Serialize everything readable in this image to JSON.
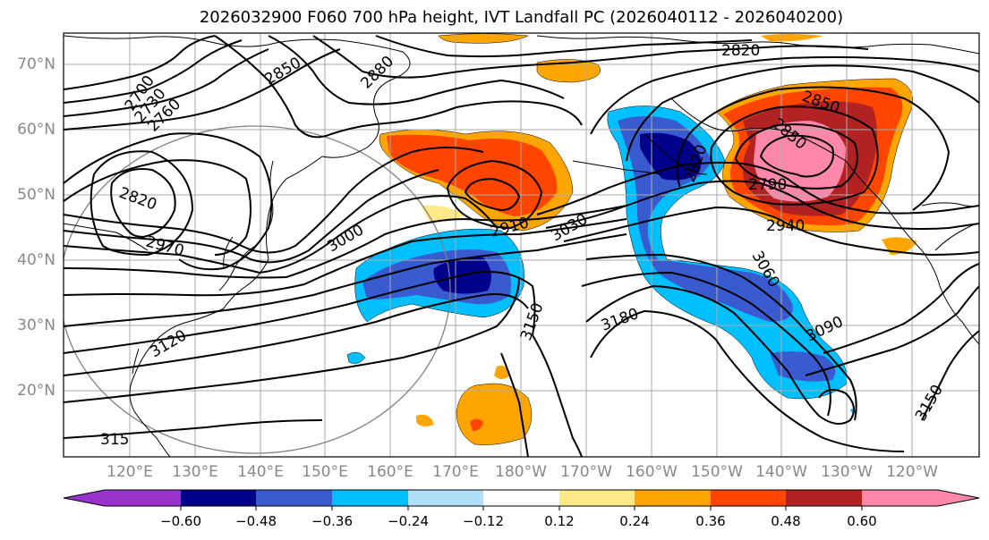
{
  "title": "2026032900 F060 700 hPa height, IVT Landfall PC (2026040112 - 2026040200)",
  "map": {
    "lat_labels": [
      "70°N",
      "60°N",
      "50°N",
      "40°N",
      "30°N",
      "20°N"
    ],
    "lon_labels": [
      "120°E",
      "130°E",
      "140°E",
      "150°E",
      "160°E",
      "170°E",
      "180°W",
      "170°W",
      "160°W",
      "150°W",
      "140°W",
      "130°W",
      "120°W"
    ],
    "contour_labels": [
      {
        "text": "2820",
        "rot": 0
      },
      {
        "text": "2850",
        "rot": -30
      },
      {
        "text": "2880",
        "rot": -45
      },
      {
        "text": "2700",
        "rot": -55
      },
      {
        "text": "2730",
        "rot": -50
      },
      {
        "text": "2760",
        "rot": -45
      },
      {
        "text": "2820",
        "rot": 20
      },
      {
        "text": "2850",
        "rot": 20
      },
      {
        "text": "2850",
        "rot": 40
      },
      {
        "text": "2910",
        "rot": -15
      },
      {
        "text": "3030",
        "rot": -30
      },
      {
        "text": "2970",
        "rot": 15
      },
      {
        "text": "3000",
        "rot": -30
      },
      {
        "text": "2790",
        "rot": 0
      },
      {
        "text": "2940",
        "rot": 0
      },
      {
        "text": "2820",
        "rot": -70
      },
      {
        "text": "3060",
        "rot": 60
      },
      {
        "text": "3090",
        "rot": -25
      },
      {
        "text": "3150",
        "rot": -70
      },
      {
        "text": "3180",
        "rot": -20
      },
      {
        "text": "3120",
        "rot": -30
      },
      {
        "text": "3150",
        "rot": -60
      },
      {
        "text": "315",
        "rot": 0
      }
    ]
  },
  "colorbar": {
    "ticks": [
      "−0.60",
      "−0.48",
      "−0.36",
      "−0.24",
      "−0.12",
      "0.12",
      "0.24",
      "0.36",
      "0.48",
      "0.60"
    ],
    "colors": [
      "#9932cc",
      "#00008b",
      "#3a5bd0",
      "#00bfff",
      "#b0e0f8",
      "#ffffff",
      "#fde987",
      "#ffa500",
      "#ff4500",
      "#b22222",
      "#ff88aa"
    ]
  },
  "palette": {
    "pos1": "#fde987",
    "pos2": "#ffa500",
    "pos3": "#ff4500",
    "pos4": "#b22222",
    "pos5": "#ff88aa",
    "neg1": "#b0e0f8",
    "neg2": "#00bfff",
    "neg3": "#3a5bd0",
    "neg4": "#00008b"
  }
}
